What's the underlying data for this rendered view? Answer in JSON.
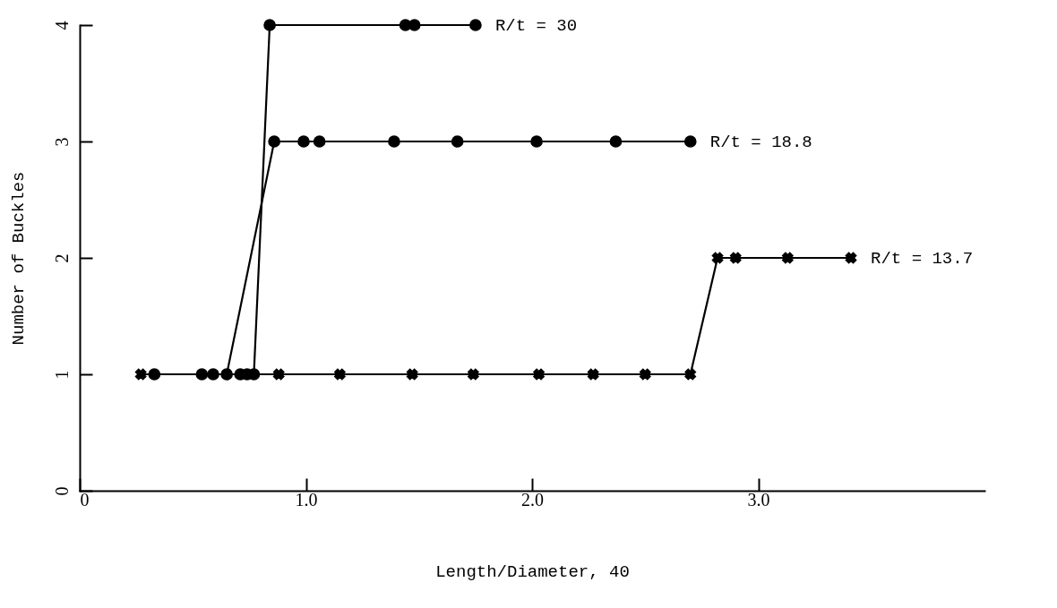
{
  "chart_data": {
    "type": "line",
    "xlabel": "Length/Diameter, 40",
    "ylabel": "Number of Buckles",
    "xlim": [
      0,
      4
    ],
    "ylim": [
      0,
      4
    ],
    "xticks": [
      0,
      {
        "value": 1,
        "label": "1.0"
      },
      {
        "value": 2,
        "label": "2.0"
      },
      {
        "value": 3,
        "label": "3.0"
      }
    ],
    "yticks": [
      0,
      1,
      2,
      3,
      4
    ],
    "grid": false,
    "series": [
      {
        "name": "R/t = 30",
        "color": "#000000",
        "marker": "circle",
        "x": [
          0.54,
          0.59,
          0.71,
          0.74,
          0.77,
          0.84,
          1.44,
          1.48,
          1.75
        ],
        "values": [
          1,
          1,
          1,
          1,
          1,
          4,
          4,
          4,
          4
        ]
      },
      {
        "name": "R/t = 18.8",
        "color": "#000000",
        "marker": "circle",
        "x": [
          0.33,
          0.65,
          0.86,
          0.99,
          1.06,
          1.39,
          1.67,
          2.02,
          2.37,
          2.7
        ],
        "values": [
          1,
          1,
          3,
          3,
          3,
          3,
          3,
          3,
          3,
          3
        ]
      },
      {
        "name": "R/t = 13.7",
        "color": "#000000",
        "marker": "cross",
        "x": [
          0.27,
          0.88,
          1.15,
          1.47,
          1.74,
          2.03,
          2.27,
          2.5,
          2.7,
          2.82,
          2.9,
          3.13,
          3.41
        ],
        "values": [
          1,
          1,
          1,
          1,
          1,
          1,
          1,
          1,
          1,
          2,
          2,
          2,
          2
        ]
      }
    ]
  }
}
